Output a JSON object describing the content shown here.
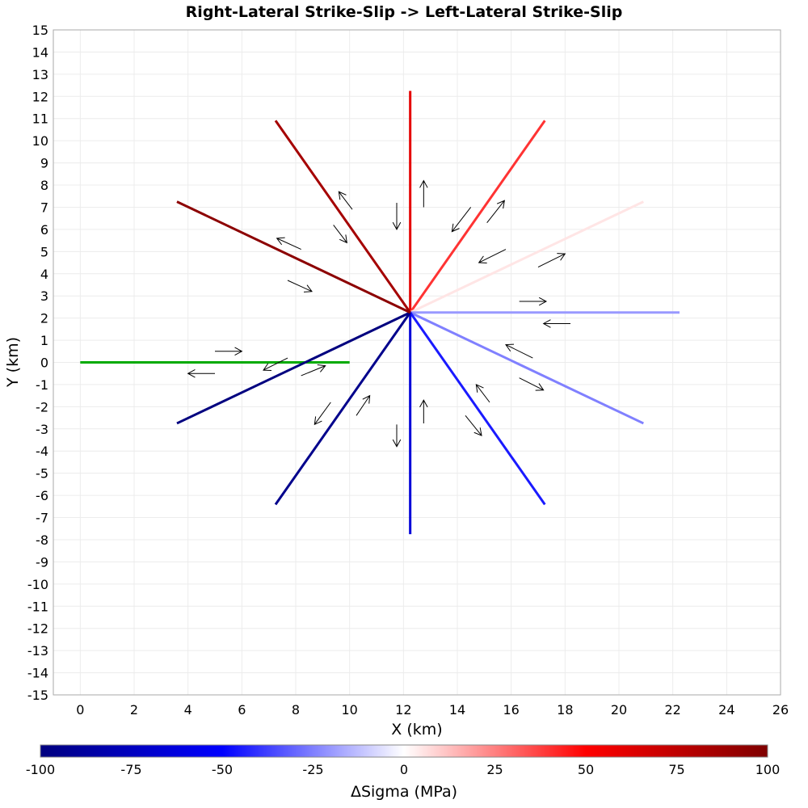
{
  "chart_data": {
    "type": "line",
    "title": "Right-Lateral Strike-Slip -> Left-Lateral Strike-Slip",
    "xlabel": "X (km)",
    "ylabel": "Y (km)",
    "xlim": [
      -1,
      26
    ],
    "ylim": [
      -15,
      15
    ],
    "xticks": [
      0,
      2,
      4,
      6,
      8,
      10,
      12,
      14,
      16,
      18,
      20,
      22,
      24,
      26
    ],
    "yticks": [
      15,
      14,
      13,
      12,
      11,
      10,
      9,
      8,
      7,
      6,
      5,
      4,
      3,
      2,
      1,
      0,
      -1,
      -2,
      -3,
      -4,
      -5,
      -6,
      -7,
      -8,
      -9,
      -10,
      -11,
      -12,
      -13,
      -14,
      -15
    ],
    "grid": true,
    "source_fault": {
      "x": [
        0,
        10
      ],
      "y": [
        0,
        0
      ],
      "color": "#00aa00"
    },
    "receiver_faults": [
      {
        "x": [
          12.25,
          12.25
        ],
        "y": [
          2.25,
          12.25
        ],
        "stress": 60
      },
      {
        "x": [
          12.25,
          17.25
        ],
        "y": [
          2.25,
          10.91
        ],
        "stress": 40
      },
      {
        "x": [
          12.25,
          20.91
        ],
        "y": [
          2.25,
          7.25
        ],
        "stress": 5
      },
      {
        "x": [
          12.25,
          22.25
        ],
        "y": [
          2.25,
          2.25
        ],
        "stress": -20
      },
      {
        "x": [
          12.25,
          20.91
        ],
        "y": [
          2.25,
          -2.75
        ],
        "stress": -25
      },
      {
        "x": [
          12.25,
          17.25
        ],
        "y": [
          2.25,
          -6.41
        ],
        "stress": -45
      },
      {
        "x": [
          12.25,
          12.25
        ],
        "y": [
          2.25,
          -7.75
        ],
        "stress": -65
      },
      {
        "x": [
          12.25,
          7.25
        ],
        "y": [
          2.25,
          -6.41
        ],
        "stress": -95
      },
      {
        "x": [
          12.25,
          3.59
        ],
        "y": [
          2.25,
          -2.75
        ],
        "stress": -100
      },
      {
        "x": [
          12.25,
          7.25
        ],
        "y": [
          2.25,
          10.91
        ],
        "stress": 85
      },
      {
        "x": [
          12.25,
          3.59
        ],
        "y": [
          2.25,
          7.25
        ],
        "stress": 95
      }
    ],
    "slip_arrows": [
      {
        "from": [
          12.75,
          7.0
        ],
        "to": [
          12.75,
          8.2
        ]
      },
      {
        "from": [
          11.75,
          7.2
        ],
        "to": [
          11.75,
          6.0
        ]
      },
      {
        "from": [
          15.1,
          6.3
        ],
        "to": [
          15.75,
          7.3
        ]
      },
      {
        "from": [
          14.5,
          7.0
        ],
        "to": [
          13.8,
          5.9
        ]
      },
      {
        "from": [
          17.0,
          4.3
        ],
        "to": [
          18.0,
          4.9
        ]
      },
      {
        "from": [
          15.8,
          5.1
        ],
        "to": [
          14.8,
          4.5
        ]
      },
      {
        "from": [
          16.3,
          2.75
        ],
        "to": [
          17.3,
          2.75
        ]
      },
      {
        "from": [
          18.2,
          1.75
        ],
        "to": [
          17.2,
          1.75
        ]
      },
      {
        "from": [
          16.8,
          0.2
        ],
        "to": [
          15.8,
          0.8
        ]
      },
      {
        "from": [
          16.3,
          -0.7
        ],
        "to": [
          17.2,
          -1.25
        ]
      },
      {
        "from": [
          15.2,
          -1.8
        ],
        "to": [
          14.7,
          -1.0
        ]
      },
      {
        "from": [
          14.3,
          -2.4
        ],
        "to": [
          14.9,
          -3.3
        ]
      },
      {
        "from": [
          12.75,
          -2.75
        ],
        "to": [
          12.75,
          -1.7
        ]
      },
      {
        "from": [
          11.75,
          -2.8
        ],
        "to": [
          11.75,
          -3.8
        ]
      },
      {
        "from": [
          10.25,
          -2.4
        ],
        "to": [
          10.75,
          -1.5
        ]
      },
      {
        "from": [
          9.3,
          -1.8
        ],
        "to": [
          8.7,
          -2.8
        ]
      },
      {
        "from": [
          8.2,
          -0.6
        ],
        "to": [
          9.1,
          -0.15
        ]
      },
      {
        "from": [
          7.7,
          0.2
        ],
        "to": [
          6.8,
          -0.35
        ]
      },
      {
        "from": [
          5.0,
          0.5
        ],
        "to": [
          6.0,
          0.5
        ]
      },
      {
        "from": [
          5.0,
          -0.5
        ],
        "to": [
          4.0,
          -0.5
        ]
      },
      {
        "from": [
          7.7,
          3.7
        ],
        "to": [
          8.6,
          3.2
        ]
      },
      {
        "from": [
          8.2,
          5.1
        ],
        "to": [
          7.3,
          5.6
        ]
      },
      {
        "from": [
          9.4,
          6.2
        ],
        "to": [
          9.9,
          5.4
        ]
      },
      {
        "from": [
          10.1,
          6.9
        ],
        "to": [
          9.6,
          7.7
        ]
      }
    ],
    "colorbar": {
      "label": "ΔSigma (MPa)",
      "min": -100,
      "max": 100,
      "ticks": [
        "-100",
        "-75",
        "-50",
        "-25",
        "0",
        "25",
        "50",
        "75",
        "100"
      ],
      "colors": [
        "#00007f",
        "#0000ff",
        "#ffffff",
        "#ff0000",
        "#7f0000"
      ]
    }
  }
}
